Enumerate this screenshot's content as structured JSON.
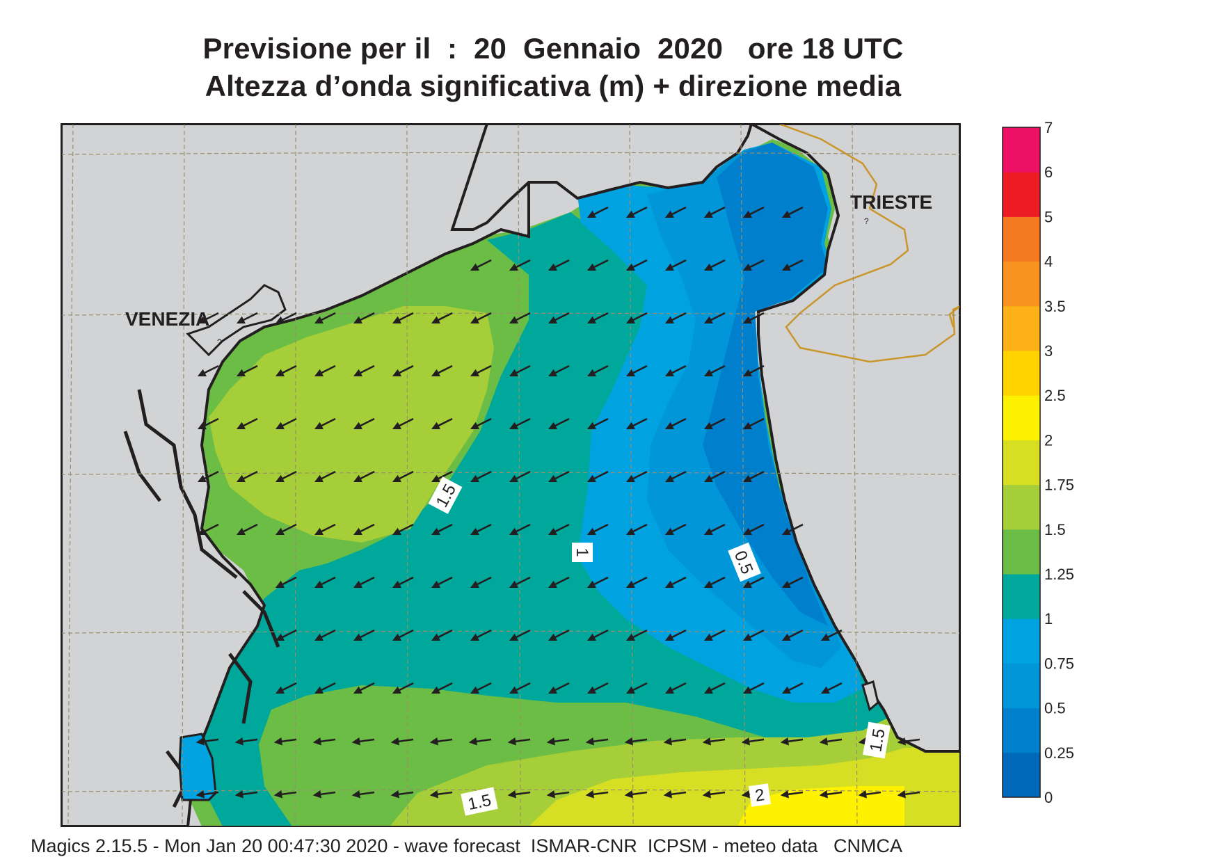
{
  "title": {
    "line1": "Previsione per il  :  20  Gennaio  2020   ore 18 UTC",
    "line2": "Altezza d’onda significativa (m) + direzione media"
  },
  "places": {
    "venezia": "VENEZIA",
    "trieste": "TRIESTE",
    "unknown_marker": "?"
  },
  "contour_labels": {
    "c_a": "1.5",
    "c_b": "1",
    "c_c": "0.5",
    "c_d": "1.5",
    "c_e": "1.5",
    "c_f": "2"
  },
  "legend": {
    "levels": [
      "0",
      "0.25",
      "0.5",
      "0.75",
      "1",
      "1.25",
      "1.5",
      "1.75",
      "2",
      "2.5",
      "3",
      "3.5",
      "4",
      "5",
      "6",
      "7"
    ],
    "colors": [
      "#0068b8",
      "#0080cc",
      "#0096d8",
      "#00a2e0",
      "#00a89c",
      "#6cbd45",
      "#a6ce39",
      "#d6df23",
      "#fff200",
      "#ffd200",
      "#fbb117",
      "#f7931e",
      "#f47920",
      "#ed1c24",
      "#ec1164"
    ]
  },
  "wave_direction": "from east-northeast toward west-southwest",
  "footer": "Magics 2.15.5 - Mon Jan 20 00:47:30 2020 - wave forecast  ISMAR-CNR  ICPSM - meteo data   CNMCA"
}
